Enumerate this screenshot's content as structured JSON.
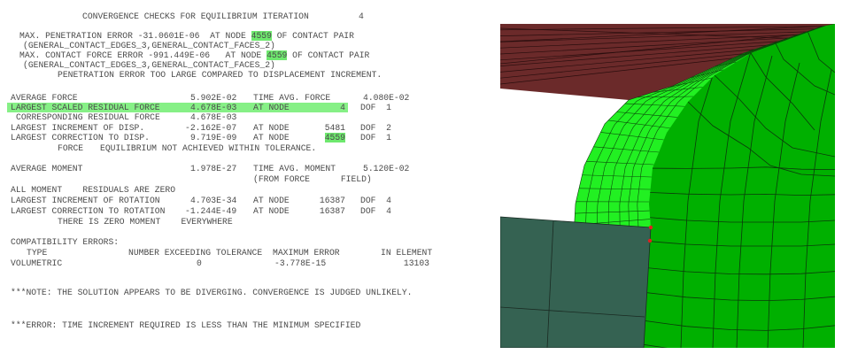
{
  "log": {
    "title": "CONVERGENCE CHECKS FOR EQUILIBRIUM ITERATION",
    "iteration": "4",
    "contact": {
      "pen_label": "MAX. PENETRATION ERROR -31.0601E-06  AT NODE",
      "pen_node": "4559",
      "pen_suffix": "OF CONTACT PAIR",
      "pair1": "(GENERAL_CONTACT_EDGES_3,GENERAL_CONTACT_FACES_2)",
      "force_label": "MAX. CONTACT FORCE ERROR -991.449E-06   AT NODE",
      "force_node": "4559",
      "force_suffix": "OF CONTACT PAIR",
      "pair2": "(GENERAL_CONTACT_EDGES_3,GENERAL_CONTACT_FACES_2)",
      "warning": "PENETRATION ERROR TOO LARGE COMPARED TO DISPLACEMENT INCREMENT."
    },
    "force": {
      "avg_label": "AVERAGE FORCE",
      "avg_value": "5.902E-02",
      "time_avg_label": "TIME AVG. FORCE",
      "time_avg_value": "4.080E-02",
      "scaled_label": "LARGEST SCALED RESIDUAL FORCE",
      "scaled_value": "4.678E-03",
      "scaled_at": "AT NODE",
      "scaled_node": "4",
      "scaled_dof": "DOF  1",
      "corr_label": "CORRESPONDING RESIDUAL FORCE",
      "corr_value": "4.678E-03",
      "inc_label": "LARGEST INCREMENT OF DISP.",
      "inc_value": "-2.162E-07",
      "inc_at": "AT NODE",
      "inc_node": "5481",
      "inc_dof": "DOF  2",
      "cor_label": "LARGEST CORRECTION TO DISP.",
      "cor_value": "9.719E-09",
      "cor_at": "AT NODE",
      "cor_node": "4559",
      "cor_dof": "DOF  1",
      "status_a": "FORCE",
      "status_b": "EQUILIBRIUM NOT ACHIEVED WITHIN TOLERANCE."
    },
    "moment": {
      "avg_label": "AVERAGE MOMENT",
      "avg_value": "1.978E-27",
      "time_avg_label": "TIME AVG. MOMENT",
      "time_avg_value": "5.120E-02",
      "from_field": "(FROM FORCE      FIELD)",
      "all_zero": "ALL MOMENT    RESIDUALS ARE ZERO",
      "inc_label": "LARGEST INCREMENT OF ROTATION",
      "inc_value": "4.703E-34",
      "inc_at": "AT NODE",
      "inc_node": "16387",
      "inc_dof": "DOF  4",
      "cor_label": "LARGEST CORRECTION TO ROTATION",
      "cor_value": "-1.244E-49",
      "cor_at": "AT NODE",
      "cor_node": "16387",
      "cor_dof": "DOF  4",
      "zero_note": "THERE IS ZERO MOMENT    EVERYWHERE"
    },
    "compat": {
      "heading": "COMPATIBILITY ERRORS:",
      "col_type": "TYPE",
      "col_number": "NUMBER EXCEEDING TOLERANCE",
      "col_max": "MAXIMUM ERROR",
      "col_elem": "IN ELEMENT",
      "row_type": "VOLUMETRIC",
      "row_number": "0",
      "row_max": "-3.778E-15",
      "row_elem": "13103"
    },
    "note": "***NOTE: THE SOLUTION APPEARS TO BE DIVERGING. CONVERGENCE IS JUDGED UNLIKELY.",
    "error": "***ERROR: TIME INCREMENT REQUIRED IS LESS THAN THE MINIMUM SPECIFIED"
  },
  "colors": {
    "highlight": "#6ee86e",
    "plate": "#6b2a2a",
    "sphere_face": "#00b000",
    "sphere_edge": "#22f022",
    "block": "#356252",
    "contact_node": "#e02020"
  }
}
